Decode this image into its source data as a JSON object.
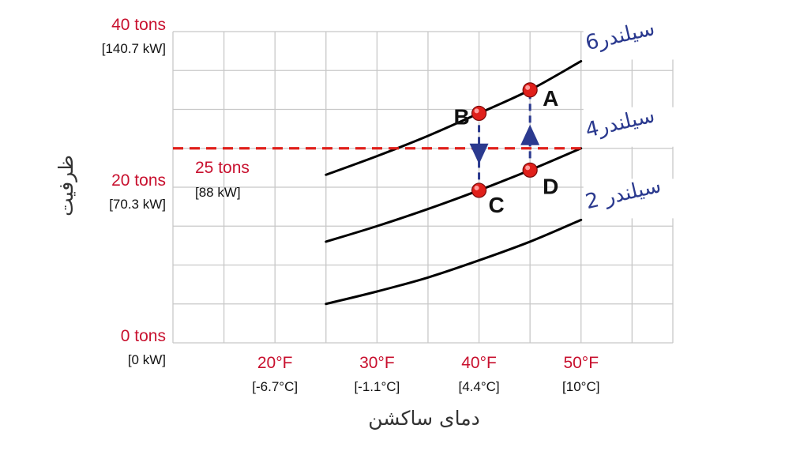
{
  "chart_data": {
    "type": "line",
    "xlabel": "دمای ساکشن",
    "ylabel": "ظرفیت",
    "xlim": [
      10,
      59
    ],
    "ylim": [
      0,
      40
    ],
    "grid": true,
    "x_ticks": [
      {
        "value": 20,
        "label": "20°F",
        "sublabel": "[-6.7°C]"
      },
      {
        "value": 30,
        "label": "30°F",
        "sublabel": "[-1.1°C]"
      },
      {
        "value": 40,
        "label": "40°F",
        "sublabel": "[4.4°C]"
      },
      {
        "value": 50,
        "label": "50°F",
        "sublabel": "[10°C]"
      }
    ],
    "y_ticks": [
      {
        "value": 0,
        "label": "0 tons",
        "sublabel": "[0 kW]"
      },
      {
        "value": 20,
        "label": "20 tons",
        "sublabel": "[70.3 kW]"
      },
      {
        "value": 40,
        "label": "40 tons",
        "sublabel": "[140.7 kW]"
      }
    ],
    "series": [
      {
        "name": "سیلندر6",
        "x": [
          25,
          30,
          35,
          40,
          45,
          50
        ],
        "y": [
          21.6,
          24.0,
          26.6,
          29.5,
          32.5,
          36.2
        ]
      },
      {
        "name": "سیلندر4",
        "x": [
          25,
          30,
          35,
          40,
          45,
          50
        ],
        "y": [
          13.0,
          15.0,
          17.2,
          19.6,
          22.2,
          25.0
        ]
      },
      {
        "name": "سیلندر 2",
        "x": [
          25,
          30,
          35,
          40,
          45,
          50
        ],
        "y": [
          5.0,
          6.6,
          8.4,
          10.6,
          13.0,
          15.8
        ]
      }
    ],
    "reference_line": {
      "y": 25,
      "label": "25 tons",
      "sublabel": "[88 kW]",
      "color": "#e0201b"
    },
    "points": [
      {
        "label": "A",
        "x": 45,
        "y": 32.5
      },
      {
        "label": "B",
        "x": 40,
        "y": 29.5
      },
      {
        "label": "C",
        "x": 40,
        "y": 19.6
      },
      {
        "label": "D",
        "x": 45,
        "y": 22.2
      }
    ],
    "transitions": [
      {
        "from": "B",
        "to": "C",
        "direction": "down"
      },
      {
        "from": "D",
        "to": "A",
        "direction": "up"
      }
    ],
    "colors": {
      "curve": "#000000",
      "grid": "#c8c8c8",
      "point": "#e0201b",
      "arrow": "#2b3a8f",
      "tick_red": "#c8102e",
      "series_label": "#2b3a8f"
    }
  }
}
